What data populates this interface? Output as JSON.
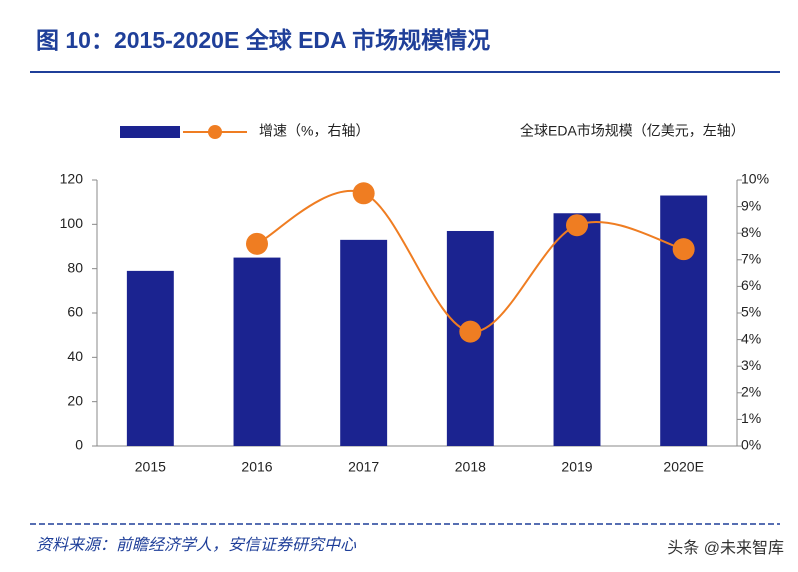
{
  "chart_data": {
    "type": "bar-line",
    "title": "图 10：2015-2020E 全球 EDA 市场规模情况",
    "categories": [
      "2015",
      "2016",
      "2017",
      "2018",
      "2019",
      "2020E"
    ],
    "series": [
      {
        "name": "全球EDA市场规模（亿美元，左轴）",
        "type": "bar",
        "color": "#1b2390",
        "axis": "y",
        "values": [
          79,
          85,
          93,
          97,
          105,
          113
        ]
      },
      {
        "name": "增速（%，右轴）",
        "type": "line",
        "color": "#ef7d22",
        "axis": "y2",
        "values": [
          null,
          7.6,
          9.5,
          4.3,
          8.3,
          7.4
        ]
      }
    ],
    "ylim": [
      0,
      120
    ],
    "yticks": [
      0,
      20,
      40,
      60,
      80,
      100,
      120
    ],
    "y2lim": [
      0,
      10
    ],
    "y2ticks": [
      {
        "value": 0,
        "label": "0%"
      },
      {
        "value": 1,
        "label": "1%"
      },
      {
        "value": 2,
        "label": "2%"
      },
      {
        "value": 3,
        "label": "3%"
      },
      {
        "value": 4,
        "label": "4%"
      },
      {
        "value": 5,
        "label": "5%"
      },
      {
        "value": 6,
        "label": "6%"
      },
      {
        "value": 7,
        "label": "7%"
      },
      {
        "value": 8,
        "label": "8%"
      },
      {
        "value": 9,
        "label": "9%"
      },
      {
        "value": 10,
        "label": "10%"
      }
    ],
    "source": "资料来源：前瞻经济学人，安信证券研究中心",
    "watermark": "头条 @未来智库"
  }
}
